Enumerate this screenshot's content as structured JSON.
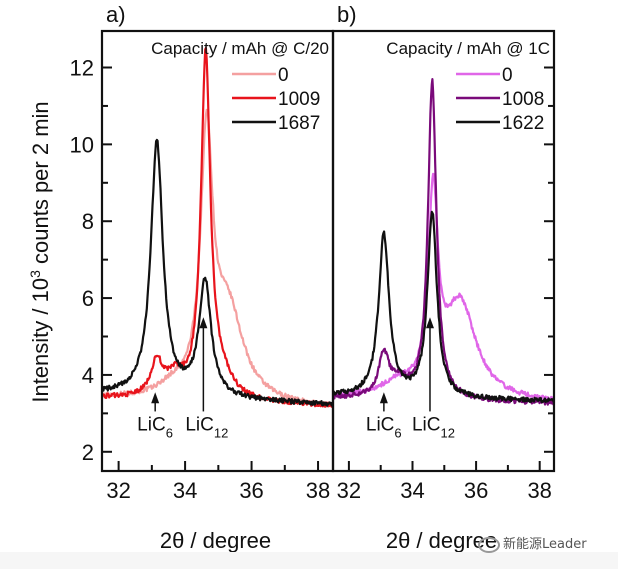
{
  "chart_data": [
    {
      "type": "line",
      "panel_label": "a)",
      "xlabel": "2θ / degree",
      "ylabel": "Intensity / 10³ counts per 2 min",
      "ylabel_parts": {
        "pre": "Intensity / 10",
        "sup": "3",
        "post": " counts per 2 min"
      },
      "xlim": [
        31.5,
        38.45
      ],
      "ylim": [
        1.5,
        12.95
      ],
      "xticks": [
        32,
        34,
        36,
        38
      ],
      "xticks_minor": [
        33,
        35,
        37
      ],
      "yticks": [
        2,
        4,
        6,
        8,
        10,
        12
      ],
      "yticks_minor": [
        3,
        5,
        7,
        9,
        11
      ],
      "show_y_tick_labels": true,
      "grid": false,
      "legend": {
        "title": "Capacity / mAh @ C/20",
        "placement": "top-right"
      },
      "series": [
        {
          "name": "0",
          "color": "#f4a0a0",
          "baseline": 3.4,
          "peaks": [
            {
              "x": 34.65,
              "h": 6.6,
              "w": 0.22
            },
            {
              "x": 35.3,
              "h": 2.3,
              "w": 0.55
            },
            {
              "x": 33.6,
              "h": 0.25,
              "w": 0.5
            }
          ],
          "tail_slope": -0.04
        },
        {
          "name": "1009",
          "color": "#e8141c",
          "baseline": 3.4,
          "peaks": [
            {
              "x": 34.62,
              "h": 8.9,
              "w": 0.17
            },
            {
              "x": 33.15,
              "h": 0.9,
              "w": 0.22
            },
            {
              "x": 33.7,
              "h": 0.5,
              "w": 0.3
            },
            {
              "x": 35.1,
              "h": 0.5,
              "w": 0.4
            }
          ],
          "tail_slope": -0.03
        },
        {
          "name": "1687",
          "color": "#111111",
          "baseline": 3.5,
          "peaks": [
            {
              "x": 33.15,
              "h": 6.6,
              "w": 0.22
            },
            {
              "x": 34.6,
              "h": 3.0,
              "w": 0.22
            }
          ],
          "tail_slope": -0.04
        }
      ],
      "annotations": [
        {
          "label": "LiC",
          "sub": "6",
          "x": 33.1,
          "arrow_from": 3.05,
          "arrow_to": 3.55
        },
        {
          "label": "LiC",
          "sub": "12",
          "x": 34.55,
          "arrow_from": 3.05,
          "arrow_to": 5.5
        }
      ]
    },
    {
      "type": "line",
      "panel_label": "b)",
      "xlabel": "2θ / degree",
      "xlim": [
        31.5,
        38.45
      ],
      "ylim": [
        1.5,
        12.95
      ],
      "xticks": [
        32,
        34,
        36,
        38
      ],
      "xticks_minor": [
        33,
        35,
        37
      ],
      "yticks": [
        2,
        4,
        6,
        8,
        10,
        12
      ],
      "yticks_minor": [
        3,
        5,
        7,
        9,
        11
      ],
      "show_y_tick_labels": false,
      "grid": false,
      "legend": {
        "title": "Capacity / mAh @ 1C",
        "placement": "top-right"
      },
      "series": [
        {
          "name": "0",
          "color": "#e066e8",
          "baseline": 3.4,
          "peaks": [
            {
              "x": 34.65,
              "h": 5.0,
              "w": 0.18
            },
            {
              "x": 35.5,
              "h": 2.5,
              "w": 0.6
            },
            {
              "x": 33.5,
              "h": 0.3,
              "w": 0.6
            }
          ],
          "tail_slope": -0.02
        },
        {
          "name": "1008",
          "color": "#7a0a7a",
          "baseline": 3.4,
          "peaks": [
            {
              "x": 34.62,
              "h": 8.3,
              "w": 0.16
            },
            {
              "x": 33.1,
              "h": 1.1,
              "w": 0.2
            },
            {
              "x": 33.6,
              "h": 0.4,
              "w": 0.3
            }
          ],
          "tail_slope": -0.02
        },
        {
          "name": "1622",
          "color": "#111111",
          "baseline": 3.45,
          "peaks": [
            {
              "x": 33.1,
              "h": 4.2,
              "w": 0.2
            },
            {
              "x": 34.62,
              "h": 4.8,
              "w": 0.18
            }
          ],
          "tail_slope": -0.02
        }
      ],
      "annotations": [
        {
          "label": "LiC",
          "sub": "6",
          "x": 33.1,
          "arrow_from": 3.05,
          "arrow_to": 3.55
        },
        {
          "label": "LiC",
          "sub": "12",
          "x": 34.55,
          "arrow_from": 3.05,
          "arrow_to": 5.5
        }
      ]
    }
  ],
  "watermark": "新能源Leader"
}
